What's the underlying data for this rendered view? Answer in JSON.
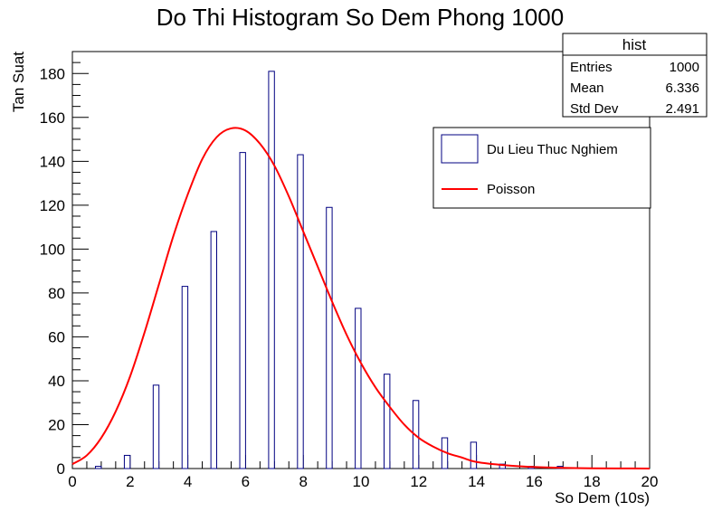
{
  "chart_data": {
    "type": "bar",
    "title": "Do Thi Histogram So Dem Phong 1000",
    "xlabel": "So Dem (10s)",
    "ylabel": "Tan Suat",
    "xlim": [
      0,
      20
    ],
    "ylim": [
      0,
      190
    ],
    "x_ticks": [
      "0",
      "2",
      "4",
      "6",
      "8",
      "10",
      "12",
      "14",
      "16",
      "18",
      "20"
    ],
    "y_ticks": [
      "0",
      "20",
      "40",
      "60",
      "80",
      "100",
      "120",
      "140",
      "160",
      "180"
    ],
    "grid": false,
    "legend_position": "top-right",
    "bar_width": 0.2,
    "bar_color": "#000080",
    "line_color": "#ff0000",
    "series": [
      {
        "name": "Du Lieu Thuc Nghiem",
        "type": "bar",
        "x": [
          0,
          1,
          2,
          3,
          4,
          5,
          6,
          7,
          8,
          9,
          10,
          11,
          12,
          13,
          14,
          15,
          16,
          17,
          18,
          19
        ],
        "values": [
          1,
          6,
          38,
          83,
          108,
          144,
          181,
          143,
          119,
          73,
          43,
          31,
          14,
          12,
          2,
          1,
          1,
          0,
          0,
          0
        ]
      },
      {
        "name": "Poisson",
        "type": "line",
        "x": [
          0,
          0.5,
          1,
          1.5,
          2,
          2.5,
          3,
          3.5,
          4,
          4.5,
          5,
          5.5,
          6,
          6.5,
          7,
          7.5,
          8,
          8.5,
          9,
          9.5,
          10,
          10.5,
          11,
          11.5,
          12,
          12.5,
          13,
          13.5,
          14,
          15,
          16,
          17,
          18,
          19,
          20
        ],
        "values": [
          2,
          6,
          14,
          26,
          42,
          62,
          84,
          106,
          125,
          141,
          151,
          155,
          154,
          148,
          138,
          124,
          108,
          92,
          76,
          61,
          48,
          37,
          28,
          20,
          14,
          10,
          7,
          5,
          3,
          1.5,
          0.7,
          0.3,
          0.1,
          0.05,
          0.02
        ]
      }
    ],
    "stats_box": {
      "title": "hist",
      "rows": [
        {
          "label": "Entries",
          "value": "1000"
        },
        {
          "label": "Mean",
          "value": "6.336"
        },
        {
          "label": "Std Dev",
          "value": "2.491"
        }
      ]
    }
  }
}
